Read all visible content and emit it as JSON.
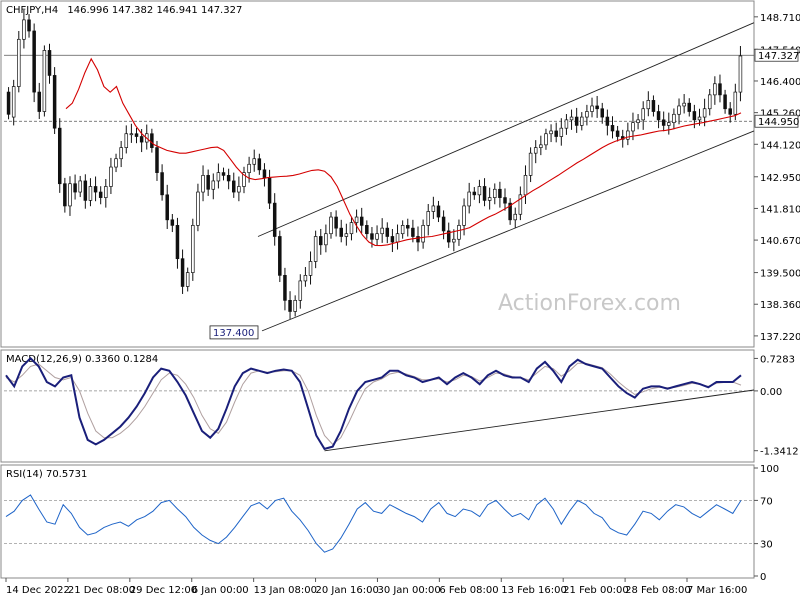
{
  "header": {
    "symbol": "CHFJPY,H4",
    "ohlc": "146.996 147.382 146.941 147.327"
  },
  "watermark": "ActionForex.com",
  "colors": {
    "candle": "#111111",
    "ma": "#d40000",
    "macd": "#1a1f7a",
    "signal": "#b0a0a0",
    "ref": "#555555"
  },
  "chart_data": [
    {
      "type": "candlestick",
      "name": "price",
      "ylim": [
        137.0,
        149.1
      ],
      "yticks": [
        "148.710",
        "147.540",
        "146.400",
        "145.260",
        "144.120",
        "142.950",
        "141.810",
        "140.670",
        "139.500",
        "138.360",
        "137.220"
      ],
      "x_ticks": [
        "14 Dec 2022",
        "21 Dec 08:00",
        "29 Dec 12:00",
        "6 Jan 00:00",
        "13 Jan 08:00",
        "20 Jan 16:00",
        "30 Jan 00:00",
        "6 Feb 08:00",
        "13 Feb 16:00",
        "21 Feb 00:00",
        "28 Feb 08:00",
        "7 Mar 16:00"
      ],
      "bars": [
        [
          146,
          145.2
        ],
        [
          145.1,
          146.2
        ],
        [
          146.2,
          147.9
        ],
        [
          147.9,
          148.6
        ],
        [
          148.6,
          148.2
        ],
        [
          148.2,
          146
        ],
        [
          146,
          145.3
        ],
        [
          145.3,
          147.5
        ],
        [
          147.5,
          146.6
        ],
        [
          146.6,
          144.7
        ],
        [
          144.7,
          142.7
        ],
        [
          142.7,
          141.9
        ],
        [
          141.9,
          142.7
        ],
        [
          142.7,
          142.4
        ],
        [
          142.4,
          142.8
        ],
        [
          142.8,
          142.1
        ],
        [
          142.1,
          142.6
        ],
        [
          142.6,
          142.4
        ],
        [
          142.4,
          142.2
        ],
        [
          142.2,
          142.6
        ],
        [
          142.6,
          143.3
        ],
        [
          143.3,
          143.6
        ],
        [
          143.6,
          144
        ],
        [
          144,
          144.5
        ],
        [
          144.5,
          144.5
        ],
        [
          144.5,
          144.4
        ],
        [
          144.4,
          144.2
        ],
        [
          144.2,
          144.5
        ],
        [
          144.5,
          144
        ],
        [
          144,
          143.1
        ],
        [
          143.1,
          142.3
        ],
        [
          142.3,
          141.4
        ],
        [
          141.4,
          141.2
        ],
        [
          141.2,
          140
        ],
        [
          140,
          139
        ],
        [
          139,
          139.5
        ],
        [
          139.5,
          141.2
        ],
        [
          141.2,
          142.4
        ],
        [
          142.4,
          143
        ],
        [
          143,
          142.5
        ],
        [
          142.5,
          142.8
        ],
        [
          142.8,
          143.1
        ],
        [
          143.1,
          143
        ],
        [
          143,
          142.8
        ],
        [
          142.8,
          142.4
        ],
        [
          142.4,
          142.6
        ],
        [
          142.6,
          143.1
        ],
        [
          143.1,
          143.4
        ],
        [
          143.4,
          143.6
        ],
        [
          143.6,
          143.2
        ],
        [
          143.2,
          142.9
        ],
        [
          142.9,
          142
        ],
        [
          142,
          140.8
        ],
        [
          140.8,
          139.4
        ],
        [
          139.4,
          138.5
        ],
        [
          138.5,
          138.1
        ],
        [
          138.1,
          138.5
        ],
        [
          138.5,
          139.2
        ],
        [
          139.2,
          139.4
        ],
        [
          139.4,
          139.9
        ],
        [
          139.9,
          140.8
        ],
        [
          140.8,
          140.5
        ],
        [
          140.5,
          140.9
        ],
        [
          140.9,
          141.5
        ],
        [
          141.5,
          141.1
        ],
        [
          141.1,
          140.8
        ],
        [
          140.8,
          140.9
        ],
        [
          140.9,
          141.3
        ],
        [
          141.3,
          141.5
        ],
        [
          141.5,
          141.2
        ],
        [
          141.2,
          140.9
        ],
        [
          140.9,
          140.7
        ],
        [
          140.7,
          140.9
        ],
        [
          140.9,
          141.1
        ],
        [
          141.1,
          140.8
        ],
        [
          140.8,
          140.6
        ],
        [
          140.6,
          140.9
        ],
        [
          140.9,
          141.2
        ],
        [
          141.2,
          141.1
        ],
        [
          141.1,
          140.8
        ],
        [
          140.8,
          140.6
        ],
        [
          140.6,
          141.2
        ],
        [
          141.2,
          141.7
        ],
        [
          141.7,
          141.9
        ],
        [
          141.9,
          141.5
        ],
        [
          141.5,
          141
        ],
        [
          141,
          140.6
        ],
        [
          140.6,
          140.7
        ],
        [
          140.7,
          141.2
        ],
        [
          141.2,
          141.9
        ],
        [
          141.9,
          142.4
        ],
        [
          142.4,
          142.3
        ],
        [
          142.3,
          142.6
        ],
        [
          142.6,
          142.1
        ],
        [
          142.1,
          142.2
        ],
        [
          142.2,
          142.5
        ],
        [
          142.5,
          142.2
        ],
        [
          142.2,
          142
        ],
        [
          142,
          141.4
        ],
        [
          141.4,
          141.6
        ],
        [
          141.6,
          142.3
        ],
        [
          142.3,
          143
        ],
        [
          143,
          143.8
        ],
        [
          143.8,
          144
        ],
        [
          144,
          144.1
        ],
        [
          144.1,
          144.5
        ],
        [
          144.5,
          144.6
        ],
        [
          144.6,
          144.4
        ],
        [
          144.4,
          144.7
        ],
        [
          144.7,
          145
        ],
        [
          145,
          145.1
        ],
        [
          145.1,
          144.8
        ],
        [
          144.8,
          145.1
        ],
        [
          145.1,
          145.3
        ],
        [
          145.3,
          145.5
        ],
        [
          145.5,
          145.4
        ],
        [
          145.4,
          145.1
        ],
        [
          145.1,
          144.8
        ],
        [
          144.8,
          144.6
        ],
        [
          144.6,
          144.4
        ],
        [
          144.4,
          144.3
        ],
        [
          144.3,
          144.6
        ],
        [
          144.6,
          144.9
        ],
        [
          144.9,
          145
        ],
        [
          145,
          145.4
        ],
        [
          145.4,
          145.7
        ],
        [
          145.7,
          145.3
        ],
        [
          145.3,
          145
        ],
        [
          145,
          144.8
        ],
        [
          144.8,
          144.9
        ],
        [
          144.9,
          145.2
        ],
        [
          145.2,
          145.5
        ],
        [
          145.5,
          145.6
        ],
        [
          145.6,
          145.3
        ],
        [
          145.3,
          145
        ],
        [
          145,
          145.1
        ],
        [
          145.1,
          145.4
        ],
        [
          145.4,
          145.9
        ],
        [
          145.9,
          146.3
        ],
        [
          146.3,
          145.9
        ],
        [
          145.9,
          145.4
        ],
        [
          145.4,
          145.2
        ],
        [
          145.2,
          146
        ],
        [
          146,
          147.3
        ]
      ],
      "moving_average": [
        145.4,
        145.6,
        146.1,
        146.7,
        147.2,
        146.8,
        146.2,
        146,
        146.2,
        145.6,
        145.2,
        144.8,
        144.5,
        144.3,
        144.1,
        144,
        143.9,
        143.85,
        143.8,
        143.8,
        143.85,
        143.9,
        143.95,
        144,
        144.02,
        143.9,
        143.6,
        143.3,
        143.05,
        142.9,
        142.85,
        142.88,
        142.92,
        142.94,
        142.96,
        142.97,
        143,
        143.05,
        143.12,
        143.18,
        143.2,
        143.15,
        142.95,
        142.6,
        142.1,
        141.6,
        141.2,
        140.85,
        140.6,
        140.48,
        140.47,
        140.5,
        140.56,
        140.62,
        140.68,
        140.72,
        140.75,
        140.78,
        140.8,
        140.85,
        140.9,
        140.95,
        141,
        141.05,
        141.12,
        141.25,
        141.38,
        141.5,
        141.6,
        141.72,
        141.85,
        142,
        142.15,
        142.3,
        142.45,
        142.58,
        142.72,
        142.86,
        143,
        143.15,
        143.3,
        143.45,
        143.58,
        143.72,
        143.86,
        144,
        144.12,
        144.22,
        144.3,
        144.38,
        144.42,
        144.45,
        144.5,
        144.55,
        144.6,
        144.62,
        144.66,
        144.72,
        144.78,
        144.82,
        144.86,
        144.9,
        144.95,
        145,
        145.05,
        145.1,
        145.15,
        145.25
      ],
      "horizontal_lines": [
        {
          "value": 147.327,
          "label": "147.327"
        },
        {
          "value": 144.95,
          "label": "144.950"
        }
      ],
      "channel": {
        "upper": [
          [
            140.8,
            148.5
          ]
        ],
        "lower": [
          [
            137.4,
            144.6
          ]
        ]
      },
      "annotations": [
        "137.400"
      ]
    },
    {
      "type": "line",
      "name": "MACD(12,26,9)",
      "label": "MACD(12,26,9) 0.3360 0.1284",
      "ylim": [
        -1.55,
        0.85
      ],
      "yticks": [
        "0.7283",
        "0.00",
        "-1.3412"
      ],
      "macd": [
        0.35,
        0.1,
        0.55,
        0.73,
        0.55,
        0.2,
        0.1,
        0.3,
        0.35,
        -0.6,
        -1.1,
        -1.2,
        -1.1,
        -0.95,
        -0.8,
        -0.6,
        -0.35,
        -0.05,
        0.3,
        0.5,
        0.45,
        0.2,
        -0.1,
        -0.5,
        -0.9,
        -1.05,
        -0.85,
        -0.4,
        0.1,
        0.4,
        0.5,
        0.45,
        0.4,
        0.45,
        0.48,
        0.45,
        0.2,
        -0.4,
        -1,
        -1.3,
        -1.25,
        -0.9,
        -0.4,
        0,
        0.2,
        0.25,
        0.3,
        0.45,
        0.45,
        0.35,
        0.3,
        0.2,
        0.25,
        0.3,
        0.15,
        0.3,
        0.4,
        0.3,
        0.15,
        0.35,
        0.45,
        0.35,
        0.3,
        0.3,
        0.2,
        0.5,
        0.65,
        0.45,
        0.2,
        0.55,
        0.7,
        0.6,
        0.55,
        0.5,
        0.3,
        0.1,
        -0.05,
        -0.15,
        0.05,
        0.1,
        0.1,
        0.05,
        0.1,
        0.15,
        0.2,
        0.15,
        0.08,
        0.2,
        0.2,
        0.2,
        0.35
      ],
      "signal": [
        0.3,
        0.2,
        0.35,
        0.55,
        0.6,
        0.45,
        0.3,
        0.25,
        0.3,
        0.0,
        -0.5,
        -0.9,
        -1.05,
        -1.05,
        -0.95,
        -0.8,
        -0.6,
        -0.35,
        -0.05,
        0.25,
        0.4,
        0.35,
        0.15,
        -0.15,
        -0.55,
        -0.85,
        -0.95,
        -0.7,
        -0.25,
        0.15,
        0.4,
        0.45,
        0.42,
        0.43,
        0.45,
        0.45,
        0.35,
        0.0,
        -0.55,
        -1.0,
        -1.2,
        -1.05,
        -0.7,
        -0.3,
        0.05,
        0.2,
        0.27,
        0.38,
        0.42,
        0.38,
        0.32,
        0.25,
        0.25,
        0.27,
        0.2,
        0.25,
        0.35,
        0.32,
        0.22,
        0.3,
        0.4,
        0.38,
        0.32,
        0.3,
        0.25,
        0.4,
        0.55,
        0.5,
        0.33,
        0.45,
        0.62,
        0.62,
        0.57,
        0.52,
        0.38,
        0.2,
        0.05,
        -0.08,
        -0.02,
        0.05,
        0.08,
        0.07,
        0.08,
        0.12,
        0.17,
        0.15,
        0.1,
        0.17,
        0.19,
        0.2,
        0.13
      ],
      "zero_line": 0
    },
    {
      "type": "line",
      "name": "RSI(14)",
      "label": "RSI(14) 70.5731",
      "ylim": [
        0,
        100
      ],
      "yticks": [
        "100",
        "70",
        "30",
        "0"
      ],
      "values": [
        55,
        60,
        70,
        75,
        62,
        50,
        48,
        66,
        58,
        45,
        38,
        40,
        45,
        48,
        50,
        46,
        52,
        55,
        60,
        68,
        70,
        62,
        55,
        45,
        38,
        33,
        30,
        36,
        45,
        55,
        65,
        68,
        62,
        70,
        72,
        60,
        52,
        42,
        30,
        22,
        25,
        35,
        48,
        62,
        68,
        60,
        58,
        66,
        62,
        58,
        55,
        50,
        62,
        68,
        58,
        55,
        62,
        60,
        55,
        66,
        70,
        62,
        55,
        58,
        52,
        66,
        72,
        62,
        48,
        60,
        70,
        66,
        58,
        54,
        44,
        40,
        38,
        48,
        60,
        58,
        52,
        60,
        66,
        64,
        58,
        54,
        60,
        66,
        62,
        58,
        70
      ],
      "levels": [
        70,
        30
      ]
    }
  ]
}
